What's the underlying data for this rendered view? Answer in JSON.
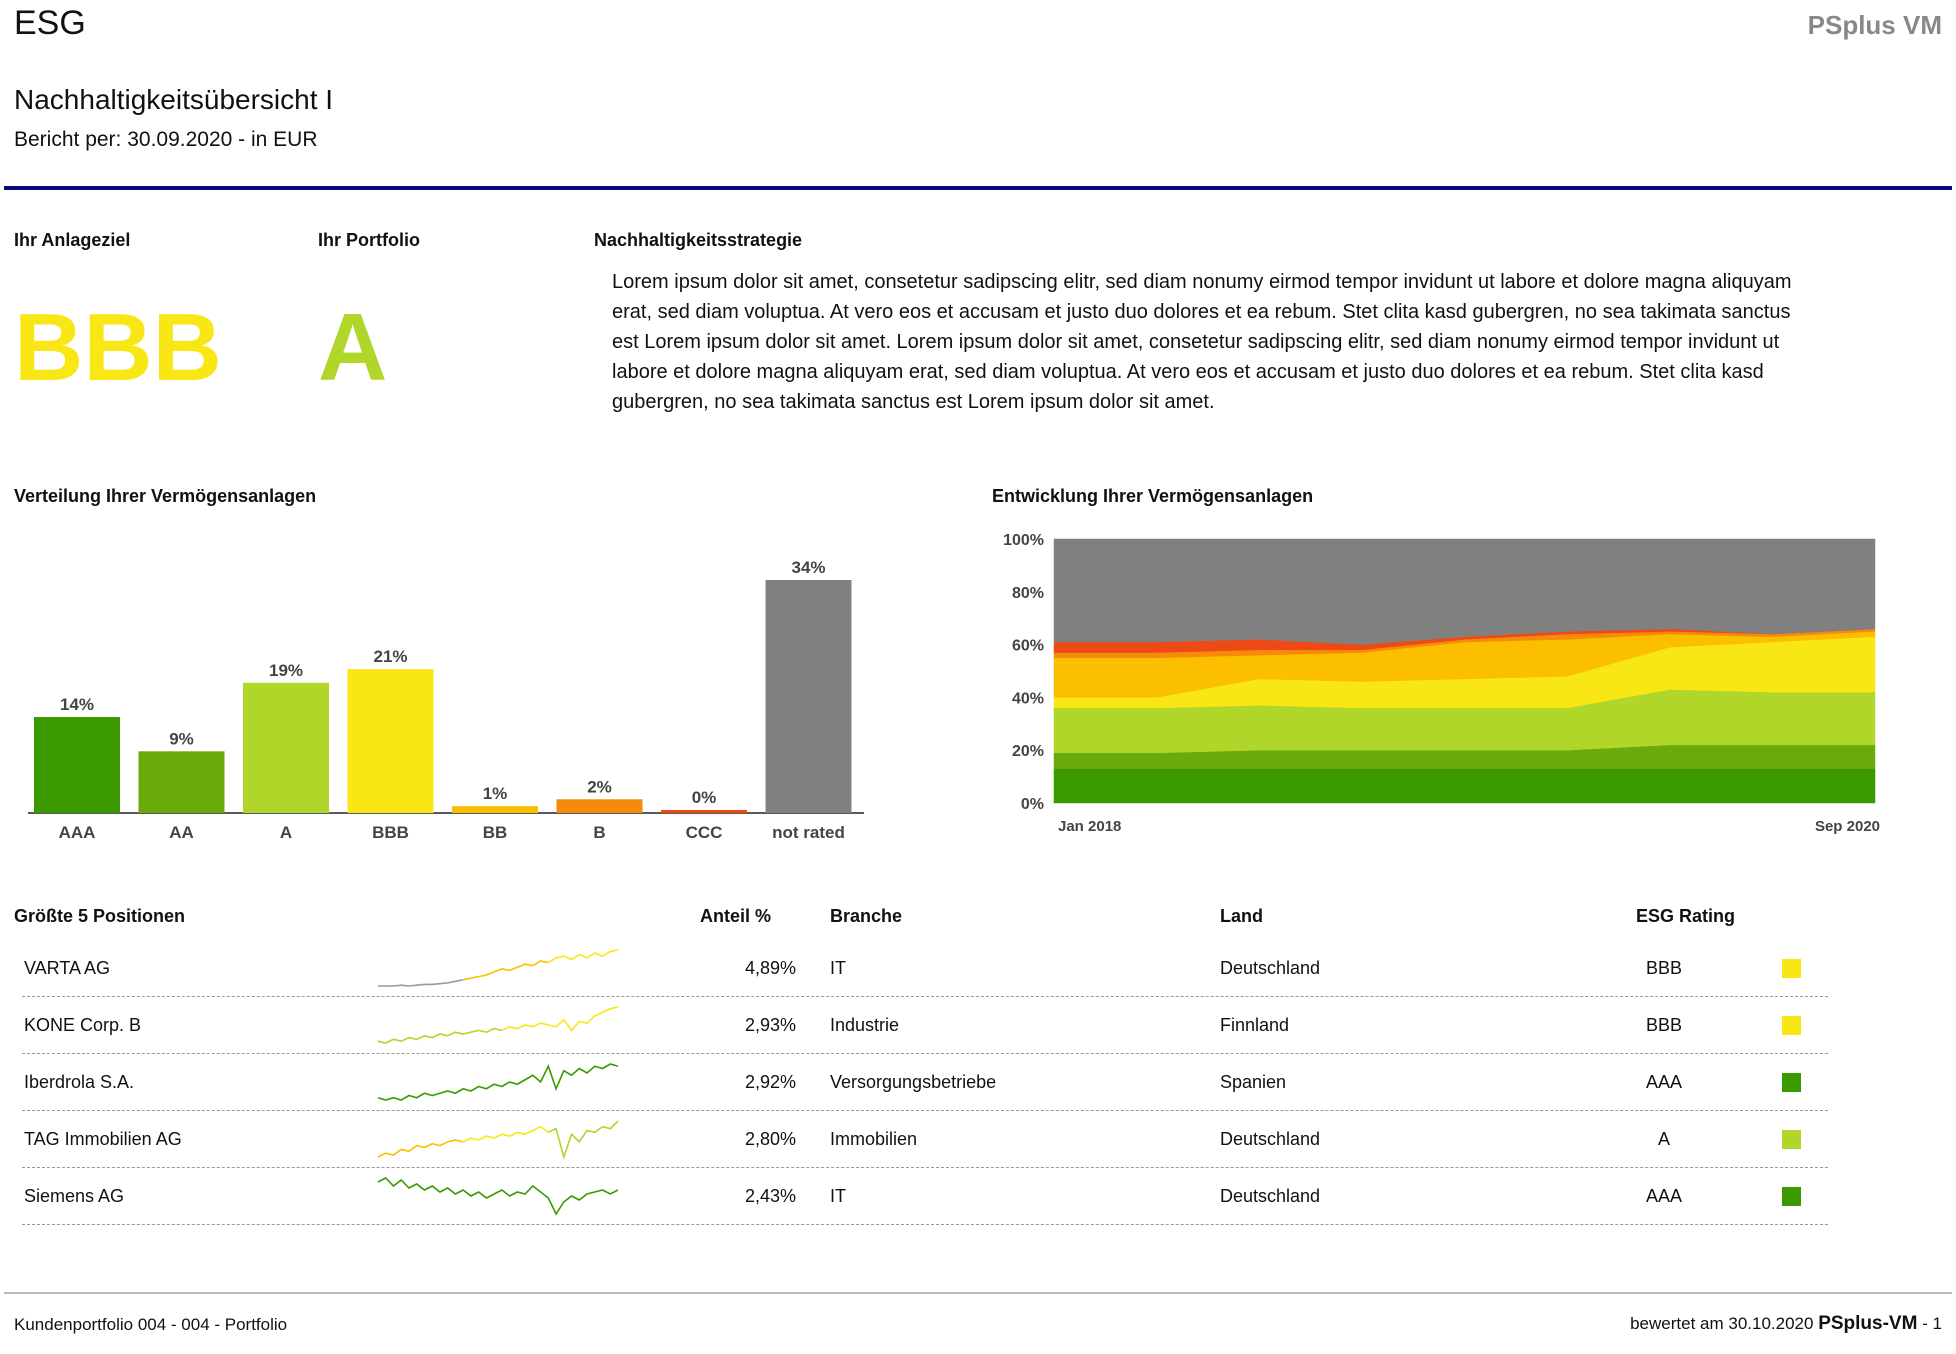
{
  "header": {
    "title": "ESG",
    "brand": "PSplus VM",
    "page_title": "Nachhaltigkeitsübersicht I",
    "report_line": "Bericht per: 30.09.2020 - in EUR"
  },
  "summary": {
    "goal_label": "Ihr Anlageziel",
    "goal_rating": "BBB",
    "goal_color": "#f9e715",
    "portfolio_label": "Ihr Portfolio",
    "portfolio_rating": "A",
    "portfolio_color": "#b0d62a",
    "strategy_label": "Nachhaltigkeitsstrategie",
    "strategy_text": "Lorem ipsum dolor sit amet, consetetur sadipscing elitr, sed diam nonumy eirmod tempor invidunt ut labore et dolore magna aliquyam erat, sed diam voluptua. At vero eos et accusam et justo duo dolores et ea rebum. Stet clita kasd gubergren, no sea takimata sanctus est Lorem ipsum dolor sit amet. Lorem ipsum dolor sit amet, consetetur sadipscing elitr, sed diam nonumy eirmod tempor invidunt ut labore et dolore magna aliquyam erat, sed diam voluptua. At vero eos et accusam et justo duo dolores et ea rebum. Stet clita kasd gubergren, no sea takimata sanctus est Lorem ipsum dolor sit amet."
  },
  "chart_data": [
    {
      "type": "bar",
      "title": "Verteilung Ihrer Vermögensanlagen",
      "categories": [
        "AAA",
        "AA",
        "A",
        "BBB",
        "BB",
        "B",
        "CCC",
        "not rated"
      ],
      "values": [
        14,
        9,
        19,
        21,
        1,
        2,
        0,
        34
      ],
      "data_labels": [
        "14%",
        "9%",
        "19%",
        "21%",
        "1%",
        "2%",
        "0%",
        "34%"
      ],
      "colors": [
        "#3a9a00",
        "#6aaa0a",
        "#b0d62a",
        "#f9e715",
        "#fbbf00",
        "#f58a0b",
        "#ee4a16",
        "#808080"
      ],
      "ylim": [
        0,
        34
      ],
      "grid": false,
      "legend": "none"
    },
    {
      "type": "area",
      "title": "Entwicklung Ihrer Vermögensanlagen",
      "stacked": true,
      "x_labels": [
        "Jan 2018",
        "Sep 2020"
      ],
      "y_ticks": [
        "0%",
        "20%",
        "40%",
        "60%",
        "80%",
        "100%"
      ],
      "ylim": [
        0,
        100
      ],
      "x": [
        "Jan 2018",
        "Mai 2018",
        "Sep 2018",
        "Jan 2019",
        "Mai 2019",
        "Sep 2019",
        "Jan 2020",
        "Mai 2020",
        "Sep 2020"
      ],
      "series": [
        {
          "color": "#3a9a00",
          "values": [
            13,
            13,
            13,
            13,
            13,
            13,
            13,
            13,
            13
          ]
        },
        {
          "color": "#6aaa0a",
          "values": [
            6,
            6,
            7,
            7,
            7,
            7,
            9,
            9,
            9
          ]
        },
        {
          "color": "#b0d62a",
          "values": [
            17,
            17,
            17,
            16,
            16,
            16,
            21,
            20,
            20
          ]
        },
        {
          "color": "#f9e715",
          "values": [
            4,
            4,
            10,
            10,
            11,
            12,
            16,
            19,
            21
          ]
        },
        {
          "color": "#fbbf00",
          "values": [
            15,
            15,
            9,
            11,
            14,
            14,
            5,
            2,
            2
          ]
        },
        {
          "color": "#f58a0b",
          "values": [
            2,
            2,
            2,
            1,
            1,
            2,
            1,
            1,
            1
          ]
        },
        {
          "color": "#ee4a16",
          "values": [
            4,
            4,
            4,
            2,
            1,
            1,
            1,
            0,
            0
          ]
        },
        {
          "color": "#808080",
          "values": [
            39,
            39,
            38,
            40,
            37,
            35,
            34,
            36,
            34
          ]
        }
      ],
      "grid": false,
      "legend": "none"
    }
  ],
  "positions": {
    "title": "Größte 5 Positionen",
    "headers": {
      "share": "Anteil %",
      "branche": "Branche",
      "land": "Land",
      "esg": "ESG Rating"
    },
    "rows": [
      {
        "name": "VARTA AG",
        "share": "4,89%",
        "branche": "IT",
        "land": "Deutschland",
        "rating": "BBB",
        "rating_color": "#f9e715",
        "spark_colors": [
          "#999999",
          "#fbbf00",
          "#f9e715"
        ],
        "spark": [
          2,
          2,
          2,
          2.5,
          2,
          2.5,
          3,
          3,
          3.5,
          4,
          5,
          6,
          7,
          8,
          9,
          11,
          13,
          12,
          14,
          16,
          15,
          18,
          17,
          20,
          21,
          19,
          22,
          20,
          23,
          21,
          24,
          25
        ]
      },
      {
        "name": "KONE Corp. B",
        "share": "2,93%",
        "branche": "Industrie",
        "land": "Finnland",
        "rating": "BBB",
        "rating_color": "#f9e715",
        "spark_colors": [
          "#b0d62a",
          "#f9e715"
        ],
        "spark": [
          8,
          7,
          9,
          8,
          10,
          9,
          11,
          10,
          12,
          11,
          13,
          12,
          13,
          14,
          13,
          15,
          14,
          16,
          15,
          17,
          16,
          18,
          17,
          16,
          20,
          14,
          19,
          18,
          22,
          24,
          26,
          27
        ]
      },
      {
        "name": "Iberdrola S.A.",
        "share": "2,92%",
        "branche": "Versorgungsbetriebe",
        "land": "Spanien",
        "rating": "AAA",
        "rating_color": "#3a9a00",
        "spark_colors": [
          "#3a9a00"
        ],
        "spark": [
          10,
          9,
          10,
          9,
          11,
          10,
          12,
          11,
          12,
          13,
          12,
          14,
          13,
          15,
          14,
          16,
          15,
          17,
          16,
          18,
          20,
          17,
          24,
          14,
          22,
          20,
          23,
          21,
          24,
          23,
          25,
          24
        ]
      },
      {
        "name": "TAG Immobilien AG",
        "share": "2,80%",
        "branche": "Immobilien",
        "land": "Deutschland",
        "rating": "A",
        "rating_color": "#b0d62a",
        "spark_colors": [
          "#fbbf00",
          "#f9e715",
          "#b0d62a"
        ],
        "spark": [
          8,
          10,
          9,
          12,
          11,
          14,
          13,
          15,
          14,
          16,
          17,
          16,
          18,
          17,
          19,
          18,
          20,
          19,
          21,
          20,
          22,
          24,
          21,
          23,
          8,
          20,
          16,
          22,
          21,
          24,
          23,
          27
        ]
      },
      {
        "name": "Siemens AG",
        "share": "2,43%",
        "branche": "IT",
        "land": "Deutschland",
        "rating": "AAA",
        "rating_color": "#3a9a00",
        "spark_colors": [
          "#3a9a00"
        ],
        "spark": [
          20,
          22,
          18,
          21,
          17,
          19,
          16,
          18,
          15,
          17,
          14,
          16,
          13,
          15,
          12,
          14,
          16,
          13,
          15,
          14,
          18,
          15,
          12,
          4,
          10,
          13,
          11,
          14,
          15,
          16,
          14,
          16
        ]
      }
    ]
  },
  "footer": {
    "left": "Kundenportfolio 004 - 004 - Portfolio",
    "right_prefix": "bewertet am 30.10.2020",
    "brand": "PSplus-VM",
    "page": "- 1"
  }
}
